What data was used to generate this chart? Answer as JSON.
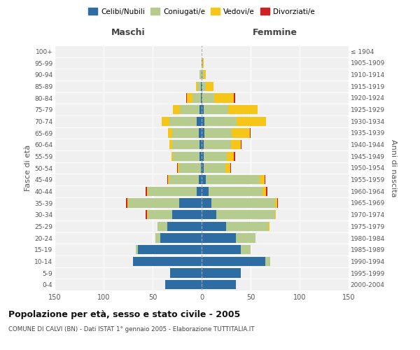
{
  "age_groups_bottom_to_top": [
    "0-4",
    "5-9",
    "10-14",
    "15-19",
    "20-24",
    "25-29",
    "30-34",
    "35-39",
    "40-44",
    "45-49",
    "50-54",
    "55-59",
    "60-64",
    "65-69",
    "70-74",
    "75-79",
    "80-84",
    "85-89",
    "90-94",
    "95-99",
    "100+"
  ],
  "birth_years_bottom_to_top": [
    "2000-2004",
    "1995-1999",
    "1990-1994",
    "1985-1989",
    "1980-1984",
    "1975-1979",
    "1970-1974",
    "1965-1969",
    "1960-1964",
    "1955-1959",
    "1950-1954",
    "1945-1949",
    "1940-1944",
    "1935-1939",
    "1930-1934",
    "1925-1929",
    "1920-1924",
    "1915-1919",
    "1910-1914",
    "1905-1909",
    "≤ 1904"
  ],
  "males": {
    "celibi": [
      37,
      32,
      70,
      65,
      42,
      35,
      30,
      23,
      5,
      3,
      1,
      2,
      2,
      3,
      5,
      2,
      1,
      1,
      0,
      0,
      0
    ],
    "coniugati": [
      0,
      0,
      0,
      2,
      5,
      10,
      25,
      52,
      50,
      30,
      22,
      27,
      28,
      27,
      28,
      20,
      8,
      3,
      2,
      0,
      0
    ],
    "vedovi": [
      0,
      0,
      0,
      0,
      0,
      0,
      1,
      1,
      1,
      1,
      1,
      2,
      3,
      4,
      8,
      7,
      6,
      2,
      0,
      0,
      0
    ],
    "divorziati": [
      0,
      0,
      0,
      0,
      0,
      0,
      1,
      1,
      1,
      1,
      1,
      0,
      0,
      0,
      0,
      0,
      1,
      0,
      0,
      0,
      0
    ]
  },
  "females": {
    "nubili": [
      35,
      40,
      65,
      40,
      35,
      25,
      15,
      10,
      7,
      4,
      2,
      2,
      2,
      3,
      3,
      2,
      1,
      1,
      1,
      1,
      0
    ],
    "coniugate": [
      0,
      0,
      5,
      10,
      20,
      43,
      60,
      65,
      55,
      55,
      22,
      24,
      28,
      28,
      33,
      25,
      12,
      3,
      1,
      0,
      0
    ],
    "vedove": [
      0,
      0,
      0,
      0,
      0,
      1,
      1,
      2,
      4,
      5,
      5,
      7,
      10,
      18,
      30,
      30,
      20,
      8,
      2,
      1,
      0
    ],
    "divorziate": [
      0,
      0,
      0,
      0,
      0,
      0,
      0,
      1,
      1,
      1,
      1,
      1,
      1,
      1,
      0,
      0,
      1,
      0,
      0,
      0,
      0
    ]
  },
  "colors": {
    "celibi": "#2e6da4",
    "coniugati": "#b5cc8e",
    "vedovi": "#f5c518",
    "divorziati": "#cc2222"
  },
  "xlim": 150,
  "title": "Popolazione per età, sesso e stato civile - 2005",
  "subtitle": "COMUNE DI CALVI (BN) - Dati ISTAT 1° gennaio 2005 - Elaborazione TUTTITALIA.IT",
  "ylabel_left": "Fasce di età",
  "ylabel_right": "Anni di nascita",
  "xlabel_left": "Maschi",
  "xlabel_right": "Femmine",
  "legend_labels": [
    "Celibi/Nubili",
    "Coniugati/e",
    "Vedovi/e",
    "Divorziati/e"
  ],
  "background_color": "#f0f0f0",
  "grid_color": "#ffffff"
}
